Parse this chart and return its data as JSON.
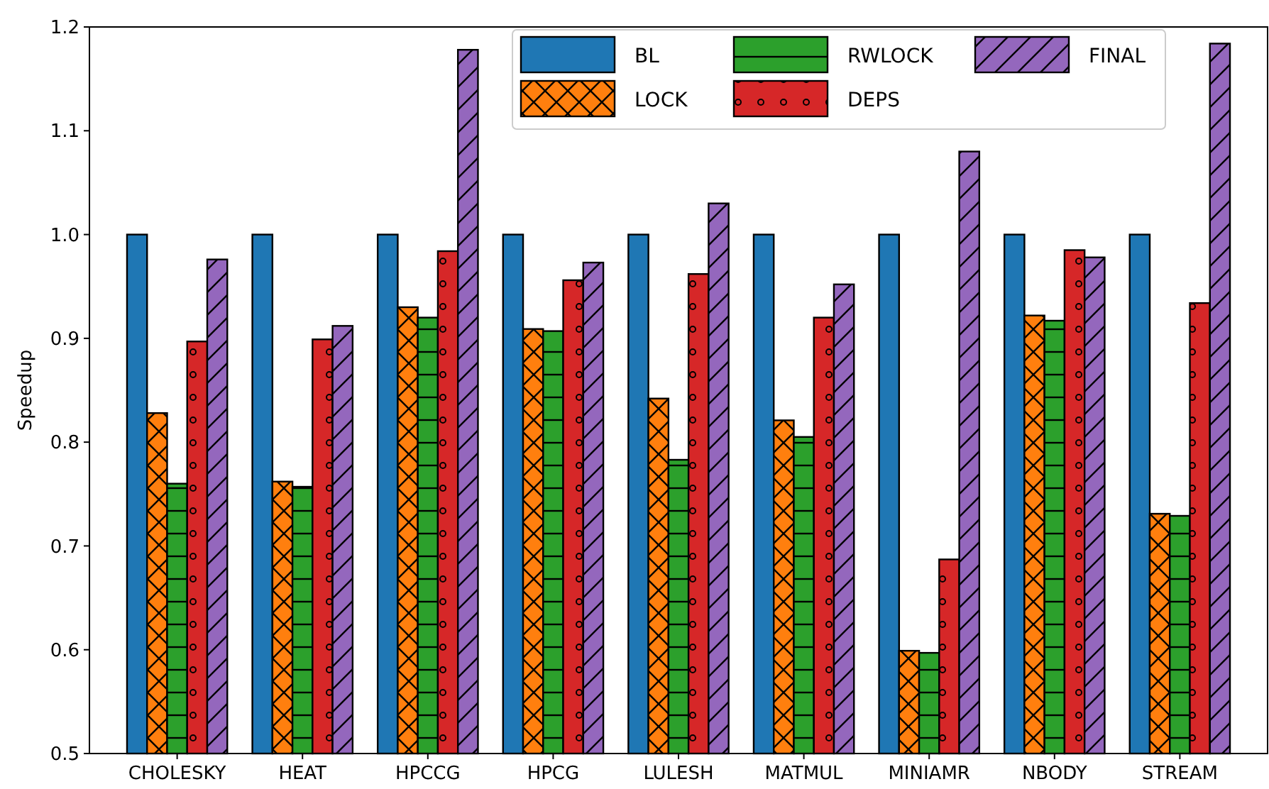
{
  "chart_data": {
    "type": "bar",
    "ylabel": "Speedup",
    "categories": [
      "CHOLESKY",
      "HEAT",
      "HPCCG",
      "HPCG",
      "LULESH",
      "MATMUL",
      "MINIAMR",
      "NBODY",
      "STREAM"
    ],
    "series": [
      {
        "name": "BL",
        "color": "#1f77b4",
        "values": [
          1.0,
          1.0,
          1.0,
          1.0,
          1.0,
          1.0,
          1.0,
          1.0,
          1.0
        ]
      },
      {
        "name": "LOCK",
        "color": "#ff7f0e",
        "values": [
          0.828,
          0.762,
          0.93,
          0.909,
          0.842,
          0.821,
          0.599,
          0.922,
          0.731
        ]
      },
      {
        "name": "RWLOCK",
        "color": "#2ca02c",
        "values": [
          0.76,
          0.757,
          0.92,
          0.907,
          0.783,
          0.805,
          0.597,
          0.917,
          0.729
        ]
      },
      {
        "name": "DEPS",
        "color": "#d62728",
        "values": [
          0.897,
          0.899,
          0.984,
          0.956,
          0.962,
          0.92,
          0.687,
          0.985,
          0.934
        ]
      },
      {
        "name": "FINAL",
        "color": "#9467bd",
        "values": [
          0.976,
          0.912,
          1.178,
          0.973,
          1.03,
          0.952,
          1.08,
          0.978,
          1.184
        ]
      }
    ],
    "ylim": [
      0.5,
      1.2
    ],
    "yticks": [
      0.5,
      0.6,
      0.7,
      0.8,
      0.9,
      {
        "value": 1.0,
        "label": "1.0"
      },
      1.1,
      1.2
    ],
    "legend": "top",
    "grid": false
  }
}
